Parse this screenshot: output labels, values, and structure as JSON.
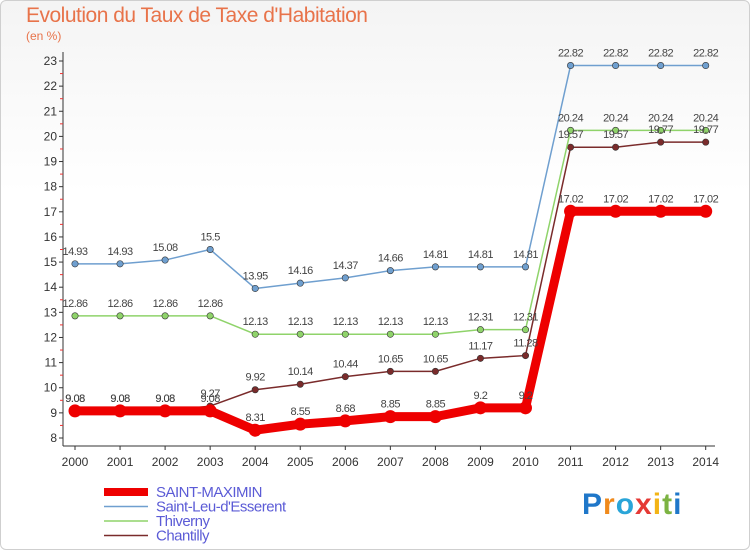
{
  "header": {
    "title": "Evolution du Taux de Taxe d'Habitation",
    "unit": "(en %)"
  },
  "brand": {
    "logo_text": "Proxiti",
    "letters": [
      "P",
      "r",
      "o",
      "x",
      "i",
      "t",
      "i"
    ],
    "letter_colors": [
      "#1f77c9",
      "#f08a1c",
      "#2aa5d8",
      "#e53935",
      "#f3b415",
      "#7cb342",
      "#1f77c9"
    ]
  },
  "chart_data": {
    "type": "line",
    "title": "Evolution du Taux de Taxe d'Habitation",
    "ylabel": "(en %)",
    "xlabel": "",
    "x": [
      "2000",
      "2001",
      "2002",
      "2003",
      "2004",
      "2005",
      "2006",
      "2007",
      "2008",
      "2009",
      "2010",
      "2011",
      "2012",
      "2013",
      "2014"
    ],
    "ylim": [
      8,
      23
    ],
    "yticks": [
      "8",
      "9",
      "10",
      "11",
      "12",
      "13",
      "14",
      "15",
      "16",
      "17",
      "18",
      "19",
      "20",
      "21",
      "22",
      "23"
    ],
    "grid": false,
    "legend_position": "bottom-left",
    "series": [
      {
        "name": "SAINT-MAXIMIN",
        "color": "#ee0000",
        "values": [
          9.08,
          9.08,
          9.08,
          9.08,
          8.31,
          8.55,
          8.68,
          8.85,
          8.85,
          9.2,
          9.2,
          17.02,
          17.02,
          17.02,
          17.02
        ],
        "labels": [
          "9.08",
          "9.08",
          "9.08",
          "9.08",
          "8.31",
          "8.55",
          "8.68",
          "8.85",
          "8.85",
          "9.2",
          "9.2",
          "17.02",
          "17.02",
          "17.02",
          "17.02"
        ]
      },
      {
        "name": "Saint-Leu-d'Esserent",
        "color": "#6f9fcf",
        "values": [
          14.93,
          14.93,
          15.08,
          15.5,
          13.95,
          14.16,
          14.37,
          14.66,
          14.81,
          14.81,
          14.81,
          22.82,
          22.82,
          22.82,
          22.82
        ],
        "labels": [
          "14.93",
          "14.93",
          "15.08",
          "15.5",
          "13.95",
          "14.16",
          "14.37",
          "14.66",
          "14.81",
          "14.81",
          "14.81",
          "22.82",
          "22.82",
          "22.82",
          "22.82"
        ]
      },
      {
        "name": "Thiverny",
        "color": "#8fd36a",
        "values": [
          12.86,
          12.86,
          12.86,
          12.86,
          12.13,
          12.13,
          12.13,
          12.13,
          12.13,
          12.31,
          12.31,
          20.24,
          20.24,
          20.24,
          20.24
        ],
        "labels": [
          "12.86",
          "12.86",
          "12.86",
          "12.86",
          "12.13",
          "12.13",
          "12.13",
          "12.13",
          "12.13",
          "12.31",
          "12.31",
          "20.24",
          "20.24",
          "20.24",
          "20.24"
        ]
      },
      {
        "name": "Chantilly",
        "color": "#7a2b2b",
        "values": [
          9.08,
          9.08,
          9.08,
          9.27,
          9.92,
          10.14,
          10.44,
          10.65,
          10.65,
          11.17,
          11.28,
          19.57,
          19.57,
          19.77,
          19.77
        ],
        "labels": [
          "9.08",
          "9.08",
          "9.08",
          "9.27",
          "9.92",
          "10.14",
          "10.44",
          "10.65",
          "10.65",
          "11.17",
          "11.28",
          "19.57",
          "19.57",
          "19.77",
          "19.77"
        ]
      }
    ]
  }
}
